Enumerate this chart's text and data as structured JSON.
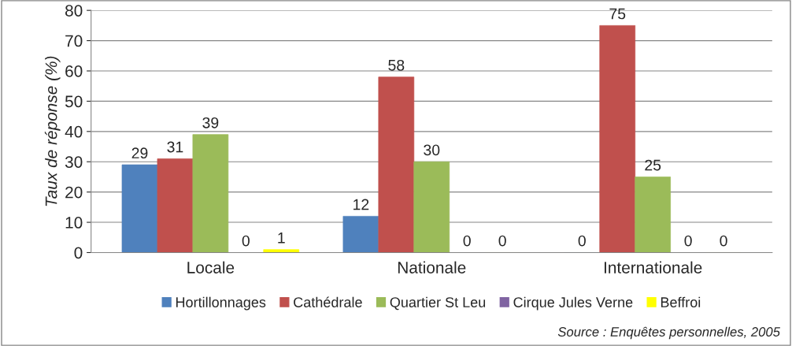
{
  "chart_data": {
    "type": "bar",
    "categories": [
      "Locale",
      "Nationale",
      "Internationale"
    ],
    "series": [
      {
        "name": "Hortillonnages",
        "color": "#4f81bd",
        "values": [
          29,
          12,
          0
        ]
      },
      {
        "name": "Cathédrale",
        "color": "#c0504d",
        "values": [
          31,
          58,
          75
        ]
      },
      {
        "name": "Quartier St Leu",
        "color": "#9bbb59",
        "values": [
          39,
          30,
          25
        ]
      },
      {
        "name": "Cirque Jules Verne",
        "color": "#8064a2",
        "values": [
          0,
          0,
          0
        ]
      },
      {
        "name": "Beffroi",
        "color": "#ffff00",
        "values": [
          1,
          0,
          0
        ]
      }
    ],
    "ylabel": "Taux de réponse (%)",
    "ylim": [
      0,
      80
    ],
    "yticks": [
      0,
      10,
      20,
      30,
      40,
      50,
      60,
      70,
      80
    ],
    "grid": "y",
    "legend": "bottom",
    "data_labels": true,
    "annotations": [
      "Source : Enquêtes personnelles, 2005"
    ]
  }
}
